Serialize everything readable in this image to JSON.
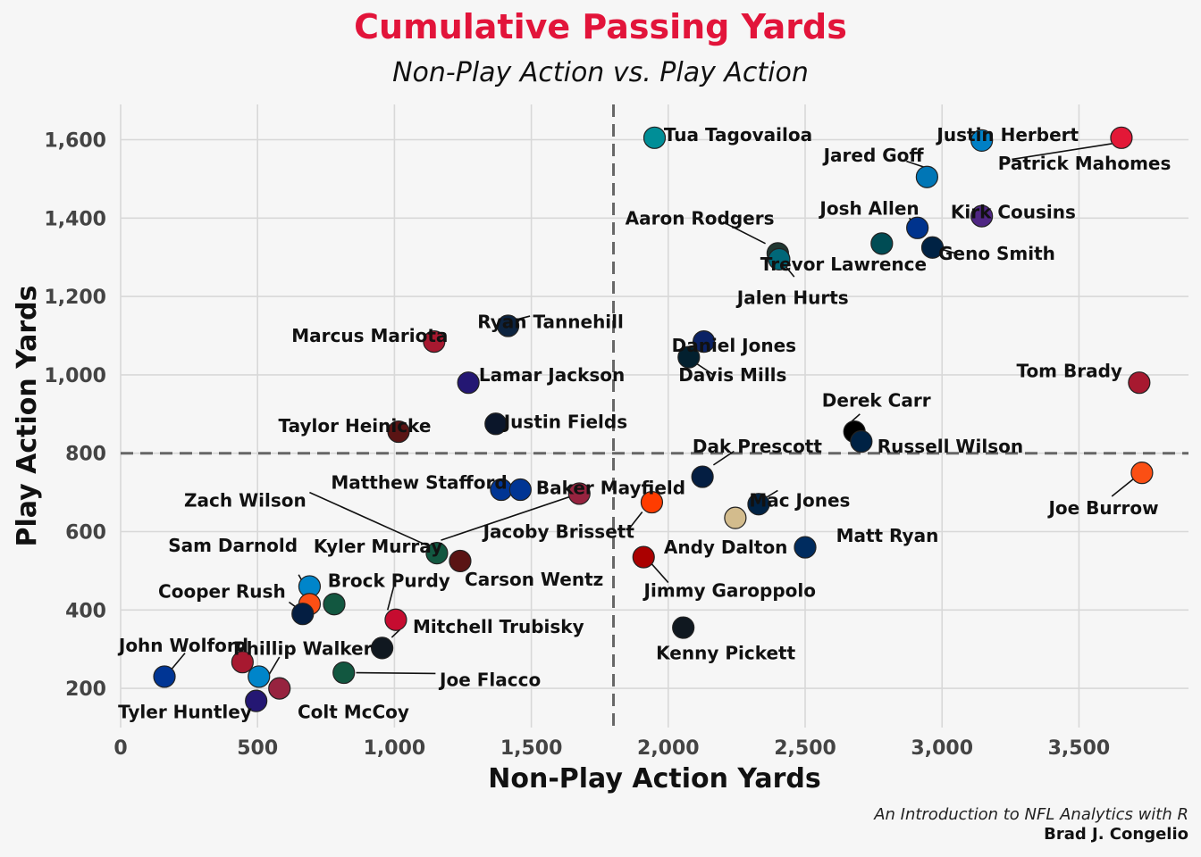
{
  "chart_data": {
    "type": "scatter",
    "title": "Cumulative Passing Yards",
    "subtitle": "Non-Play Action vs. Play Action",
    "xlabel": "Non-Play Action Yards",
    "ylabel": "Play Action Yards",
    "xlim": [
      0,
      3900
    ],
    "ylim": [
      100,
      1690
    ],
    "xticks": [
      0,
      500,
      1000,
      1500,
      2000,
      2500,
      3000,
      3500
    ],
    "yticks": [
      200,
      400,
      600,
      800,
      1000,
      1200,
      1400,
      1600
    ],
    "xtick_labels": [
      "0",
      "500",
      "1,000",
      "1,500",
      "2,000",
      "2,500",
      "3,000",
      "3,500"
    ],
    "ytick_labels": [
      "200",
      "400",
      "600",
      "800",
      "1,000",
      "1,200",
      "1,400",
      "1,600"
    ],
    "reference_lines": {
      "vertical_x": 1800,
      "horizontal_y": 800
    },
    "grid": true,
    "points": [
      {
        "name": "Tua Tagovailoa",
        "x": 1950,
        "y": 1605,
        "color": "#008e97"
      },
      {
        "name": "Justin Herbert",
        "x": 3145,
        "y": 1598,
        "color": "#0080c6"
      },
      {
        "name": "Patrick Mahomes",
        "x": 3655,
        "y": 1605,
        "color": "#e31837"
      },
      {
        "name": "Jared Goff",
        "x": 2945,
        "y": 1505,
        "color": "#0076b6"
      },
      {
        "name": "Kirk Cousins",
        "x": 3145,
        "y": 1405,
        "color": "#4f2683"
      },
      {
        "name": "Josh Allen",
        "x": 2910,
        "y": 1375,
        "color": "#00338d"
      },
      {
        "name": "Aaron Rodgers",
        "x": 2400,
        "y": 1310,
        "color": "#203731"
      },
      {
        "name": "Trevor Lawrence",
        "x": 2405,
        "y": 1295,
        "color": "#006778"
      },
      {
        "name": "Jalen Hurts",
        "x": 2780,
        "y": 1335,
        "color": "#004c54"
      },
      {
        "name": "Geno Smith",
        "x": 2965,
        "y": 1325,
        "color": "#002244"
      },
      {
        "name": "Ryan Tannehill",
        "x": 1415,
        "y": 1125,
        "color": "#0c2340"
      },
      {
        "name": "Marcus Mariota",
        "x": 1145,
        "y": 1085,
        "color": "#a71930"
      },
      {
        "name": "Daniel Jones",
        "x": 2130,
        "y": 1085,
        "color": "#0b2265"
      },
      {
        "name": "Davis Mills",
        "x": 2075,
        "y": 1045,
        "color": "#03202f"
      },
      {
        "name": "Lamar Jackson",
        "x": 1270,
        "y": 980,
        "color": "#241773"
      },
      {
        "name": "Tom Brady",
        "x": 3720,
        "y": 980,
        "color": "#a71930"
      },
      {
        "name": "Justin Fields",
        "x": 1370,
        "y": 875,
        "color": "#0b162a"
      },
      {
        "name": "Taylor Heinicke",
        "x": 1015,
        "y": 855,
        "color": "#5a1414"
      },
      {
        "name": "Derek Carr",
        "x": 2680,
        "y": 855,
        "color": "#000000"
      },
      {
        "name": "Russell Wilson",
        "x": 2705,
        "y": 830,
        "color": "#002244"
      },
      {
        "name": "Joe Burrow",
        "x": 3730,
        "y": 750,
        "color": "#fb4f14"
      },
      {
        "name": "Dak Prescott",
        "x": 2125,
        "y": 740,
        "color": "#041e42"
      },
      {
        "name": "Matthew Stafford",
        "x": 1390,
        "y": 707,
        "color": "#003594"
      },
      {
        "name": "Matthew Stafford 2",
        "x": 1460,
        "y": 707,
        "color": "#003594"
      },
      {
        "name": "Baker Mayfield",
        "x": 1675,
        "y": 697,
        "color": "#97233f"
      },
      {
        "name": "Jacoby Brissett",
        "x": 1940,
        "y": 675,
        "color": "#ff3c00"
      },
      {
        "name": "Mac Jones",
        "x": 2330,
        "y": 670,
        "color": "#002244"
      },
      {
        "name": "Andy Dalton",
        "x": 2245,
        "y": 635,
        "color": "#d3bc8d"
      },
      {
        "name": "Matt Ryan",
        "x": 2500,
        "y": 560,
        "color": "#002c5f"
      },
      {
        "name": "Zach Wilson",
        "x": 1155,
        "y": 545,
        "color": "#125740"
      },
      {
        "name": "Carson Wentz",
        "x": 1240,
        "y": 525,
        "color": "#5a1414"
      },
      {
        "name": "Jimmy Garoppolo",
        "x": 1910,
        "y": 535,
        "color": "#aa0000"
      },
      {
        "name": "Sam Darnold",
        "x": 690,
        "y": 460,
        "color": "#0085ca"
      },
      {
        "name": "Sam Darnold 2",
        "x": 690,
        "y": 415,
        "color": "#fb4f14"
      },
      {
        "name": "Brock Purdy",
        "x": 780,
        "y": 415,
        "color": "#125740"
      },
      {
        "name": "Cooper Rush",
        "x": 665,
        "y": 390,
        "color": "#041e42"
      },
      {
        "name": "Mitchell Trubisky",
        "x": 1005,
        "y": 375,
        "color": "#c60c30"
      },
      {
        "name": "Kenny Pickett",
        "x": 2055,
        "y": 355,
        "color": "#101820"
      },
      {
        "name": "Mitchell Trubisky 2",
        "x": 955,
        "y": 303,
        "color": "#101820"
      },
      {
        "name": "Joe Flacco",
        "x": 815,
        "y": 240,
        "color": "#125740"
      },
      {
        "name": "John Wolford",
        "x": 445,
        "y": 267,
        "color": "#a71930"
      },
      {
        "name": "Phillip Walker",
        "x": 505,
        "y": 230,
        "color": "#0085ca"
      },
      {
        "name": "Tyler Huntley",
        "x": 160,
        "y": 230,
        "color": "#003594"
      },
      {
        "name": "Colt McCoy",
        "x": 580,
        "y": 200,
        "color": "#97233f"
      },
      {
        "name": "Tyler Huntley 2",
        "x": 495,
        "y": 168,
        "color": "#241773"
      }
    ],
    "labels": [
      {
        "text": "Tua Tagovailoa",
        "x": 2255,
        "y": 1612,
        "anchor": "middle"
      },
      {
        "text": "Justin Herbert",
        "x": 3240,
        "y": 1612,
        "anchor": "middle"
      },
      {
        "text": "Patrick Mahomes",
        "x": 3520,
        "y": 1540,
        "anchor": "middle"
      },
      {
        "text": "Jared Goff",
        "x": 2750,
        "y": 1560,
        "anchor": "middle"
      },
      {
        "text": "Kirk Cousins",
        "x": 3260,
        "y": 1415,
        "anchor": "middle"
      },
      {
        "text": "Josh Allen",
        "x": 2735,
        "y": 1425,
        "anchor": "middle"
      },
      {
        "text": "Aaron Rodgers",
        "x": 2115,
        "y": 1400,
        "anchor": "middle"
      },
      {
        "text": "Trevor Lawrence",
        "x": 2640,
        "y": 1282,
        "anchor": "middle"
      },
      {
        "text": "Jalen Hurts",
        "x": 2455,
        "y": 1197,
        "anchor": "middle"
      },
      {
        "text": "Geno Smith",
        "x": 3200,
        "y": 1310,
        "anchor": "middle"
      },
      {
        "text": "Ryan Tannehill",
        "x": 1570,
        "y": 1135,
        "anchor": "middle"
      },
      {
        "text": "Marcus Mariota",
        "x": 910,
        "y": 1100,
        "anchor": "middle"
      },
      {
        "text": "Daniel Jones",
        "x": 2240,
        "y": 1075,
        "anchor": "middle"
      },
      {
        "text": "Davis Mills",
        "x": 2235,
        "y": 1000,
        "anchor": "middle"
      },
      {
        "text": "Lamar Jackson",
        "x": 1575,
        "y": 1000,
        "anchor": "middle"
      },
      {
        "text": "Tom Brady",
        "x": 3465,
        "y": 1010,
        "anchor": "middle"
      },
      {
        "text": "Justin Fields",
        "x": 1625,
        "y": 880,
        "anchor": "middle"
      },
      {
        "text": "Taylor Heinicke",
        "x": 855,
        "y": 870,
        "anchor": "middle"
      },
      {
        "text": "Derek Carr",
        "x": 2760,
        "y": 935,
        "anchor": "middle"
      },
      {
        "text": "Russell Wilson",
        "x": 3030,
        "y": 817,
        "anchor": "middle"
      },
      {
        "text": "Joe Burrow",
        "x": 3590,
        "y": 660,
        "anchor": "middle"
      },
      {
        "text": "Dak Prescott",
        "x": 2325,
        "y": 817,
        "anchor": "middle"
      },
      {
        "text": "Matthew Stafford",
        "x": 1090,
        "y": 725,
        "anchor": "middle"
      },
      {
        "text": "Baker Mayfield",
        "x": 1790,
        "y": 712,
        "anchor": "middle"
      },
      {
        "text": "Jacoby Brissett",
        "x": 1600,
        "y": 600,
        "anchor": "middle"
      },
      {
        "text": "Mac Jones",
        "x": 2480,
        "y": 680,
        "anchor": "middle"
      },
      {
        "text": "Andy Dalton",
        "x": 2210,
        "y": 560,
        "anchor": "middle"
      },
      {
        "text": "Matt Ryan",
        "x": 2800,
        "y": 590,
        "anchor": "middle"
      },
      {
        "text": "Zach Wilson",
        "x": 455,
        "y": 680,
        "anchor": "middle"
      },
      {
        "text": "Kyler Murray",
        "x": 940,
        "y": 562,
        "anchor": "middle"
      },
      {
        "text": "Carson Wentz",
        "x": 1510,
        "y": 478,
        "anchor": "middle"
      },
      {
        "text": "Jimmy Garoppolo",
        "x": 2225,
        "y": 450,
        "anchor": "middle"
      },
      {
        "text": "Sam Darnold",
        "x": 410,
        "y": 565,
        "anchor": "middle"
      },
      {
        "text": "Brock Purdy",
        "x": 980,
        "y": 475,
        "anchor": "middle"
      },
      {
        "text": "Cooper Rush",
        "x": 370,
        "y": 447,
        "anchor": "middle"
      },
      {
        "text": "Mitchell Trubisky",
        "x": 1380,
        "y": 357,
        "anchor": "middle"
      },
      {
        "text": "Kenny Pickett",
        "x": 2210,
        "y": 290,
        "anchor": "middle"
      },
      {
        "text": "Joe Flacco",
        "x": 1350,
        "y": 222,
        "anchor": "middle"
      },
      {
        "text": "John Wolford",
        "x": 230,
        "y": 310,
        "anchor": "middle"
      },
      {
        "text": "Phillip Walker",
        "x": 665,
        "y": 302,
        "anchor": "middle"
      },
      {
        "text": "Tyler Huntley",
        "x": 235,
        "y": 140,
        "anchor": "middle"
      },
      {
        "text": "Colt McCoy",
        "x": 850,
        "y": 140,
        "anchor": "middle"
      }
    ],
    "connectors": [
      [
        3255,
        1550,
        3620,
        1590
      ],
      [
        2935,
        1530,
        2870,
        1545
      ],
      [
        2940,
        1360,
        2880,
        1400
      ],
      [
        2355,
        1335,
        2200,
        1390
      ],
      [
        2460,
        1250,
        2425,
        1280
      ],
      [
        3000,
        1320,
        3050,
        1310
      ],
      [
        1440,
        1140,
        1495,
        1150
      ],
      [
        2105,
        1028,
        2170,
        998
      ],
      [
        1005,
        845,
        975,
        865
      ],
      [
        2660,
        875,
        2700,
        900
      ],
      [
        3620,
        690,
        3700,
        735
      ],
      [
        2165,
        770,
        2240,
        805
      ],
      [
        1905,
        650,
        1860,
        610
      ],
      [
        2360,
        688,
        2400,
        705
      ],
      [
        1930,
        525,
        2000,
        470
      ],
      [
        1135,
        560,
        690,
        700
      ],
      [
        1645,
        690,
        1170,
        578
      ],
      [
        650,
        490,
        690,
        440
      ],
      [
        975,
        400,
        1005,
        480
      ],
      [
        615,
        420,
        655,
        400
      ],
      [
        990,
        330,
        1020,
        350
      ],
      [
        860,
        240,
        1150,
        238
      ],
      [
        185,
        248,
        235,
        290
      ],
      [
        525,
        215,
        580,
        280
      ],
      [
        490,
        190,
        470,
        148
      ]
    ]
  },
  "caption": {
    "line1": "An Introduction to NFL Analytics with R",
    "line2": "Brad J. Congelio"
  }
}
